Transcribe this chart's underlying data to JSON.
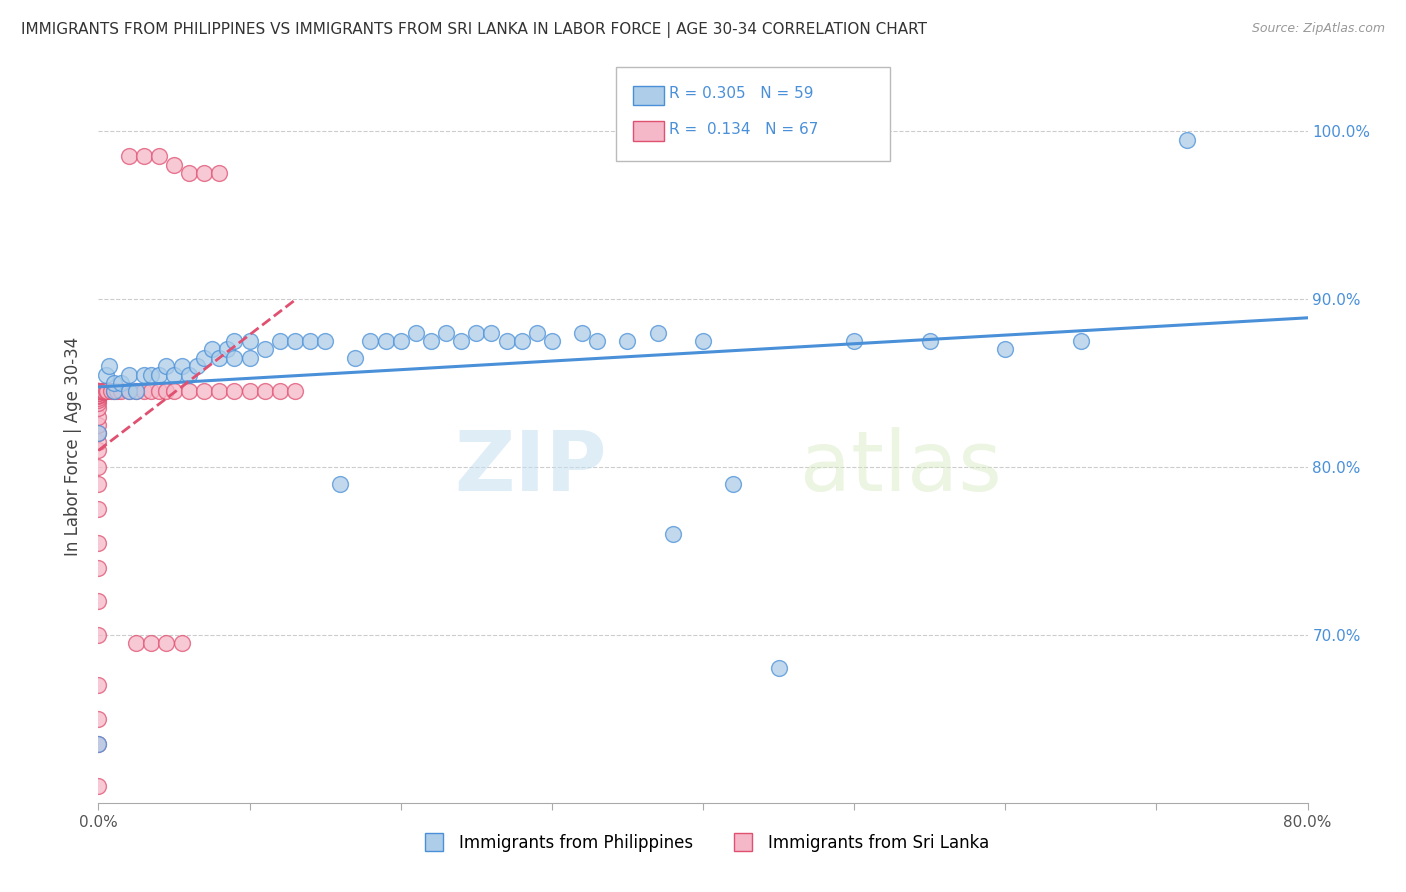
{
  "title": "IMMIGRANTS FROM PHILIPPINES VS IMMIGRANTS FROM SRI LANKA IN LABOR FORCE | AGE 30-34 CORRELATION CHART",
  "source": "Source: ZipAtlas.com",
  "ylabel": "In Labor Force | Age 30-34",
  "xmin": 0.0,
  "xmax": 0.8,
  "ymin": 0.6,
  "ymax": 1.025,
  "yticks": [
    0.7,
    0.8,
    0.9,
    1.0
  ],
  "ytick_labels": [
    "70.0%",
    "80.0%",
    "90.0%",
    "100.0%"
  ],
  "xticks": [
    0.0,
    0.1,
    0.2,
    0.3,
    0.4,
    0.5,
    0.6,
    0.7,
    0.8
  ],
  "xtick_labels": [
    "0.0%",
    "",
    "",
    "",
    "",
    "",
    "",
    "",
    "80.0%"
  ],
  "legend_labels": [
    "Immigrants from Philippines",
    "Immigrants from Sri Lanka"
  ],
  "R_philippines": 0.305,
  "N_philippines": 59,
  "R_sri_lanka": 0.134,
  "N_sri_lanka": 67,
  "color_philippines": "#aecde8",
  "color_sri_lanka": "#f5b8c8",
  "color_trend_philippines": "#4a90d9",
  "color_trend_sri_lanka": "#e05070",
  "watermark_zip": "ZIP",
  "watermark_atlas": "atlas",
  "philippines_x": [
    0.0,
    0.0,
    0.005,
    0.007,
    0.01,
    0.01,
    0.015,
    0.02,
    0.02,
    0.025,
    0.03,
    0.035,
    0.04,
    0.045,
    0.05,
    0.055,
    0.06,
    0.065,
    0.07,
    0.075,
    0.08,
    0.085,
    0.09,
    0.09,
    0.1,
    0.1,
    0.11,
    0.12,
    0.13,
    0.14,
    0.15,
    0.16,
    0.17,
    0.18,
    0.19,
    0.2,
    0.21,
    0.22,
    0.23,
    0.24,
    0.25,
    0.26,
    0.27,
    0.28,
    0.29,
    0.3,
    0.32,
    0.33,
    0.35,
    0.37,
    0.38,
    0.4,
    0.42,
    0.45,
    0.5,
    0.55,
    0.6,
    0.65,
    0.72
  ],
  "philippines_y": [
    0.635,
    0.82,
    0.855,
    0.86,
    0.845,
    0.85,
    0.85,
    0.845,
    0.855,
    0.845,
    0.855,
    0.855,
    0.855,
    0.86,
    0.855,
    0.86,
    0.855,
    0.86,
    0.865,
    0.87,
    0.865,
    0.87,
    0.865,
    0.875,
    0.865,
    0.875,
    0.87,
    0.875,
    0.875,
    0.875,
    0.875,
    0.79,
    0.865,
    0.875,
    0.875,
    0.875,
    0.88,
    0.875,
    0.88,
    0.875,
    0.88,
    0.88,
    0.875,
    0.875,
    0.88,
    0.875,
    0.88,
    0.875,
    0.875,
    0.88,
    0.76,
    0.875,
    0.79,
    0.68,
    0.875,
    0.875,
    0.87,
    0.875,
    0.995
  ],
  "srilanka_x": [
    0.0,
    0.0,
    0.0,
    0.0,
    0.0,
    0.0,
    0.0,
    0.0,
    0.0,
    0.0,
    0.0,
    0.0,
    0.0,
    0.0,
    0.0,
    0.0,
    0.0,
    0.0,
    0.0,
    0.0,
    0.0,
    0.0,
    0.0,
    0.0,
    0.0,
    0.0,
    0.0,
    0.0,
    0.0,
    0.0,
    0.0,
    0.0,
    0.002,
    0.003,
    0.004,
    0.005,
    0.006,
    0.008,
    0.01,
    0.012,
    0.015,
    0.02,
    0.025,
    0.03,
    0.035,
    0.04,
    0.045,
    0.05,
    0.06,
    0.07,
    0.08,
    0.09,
    0.1,
    0.11,
    0.12,
    0.13,
    0.02,
    0.03,
    0.04,
    0.05,
    0.06,
    0.07,
    0.08,
    0.025,
    0.035,
    0.045,
    0.055
  ],
  "srilanka_y": [
    0.61,
    0.635,
    0.65,
    0.67,
    0.7,
    0.72,
    0.74,
    0.755,
    0.775,
    0.79,
    0.8,
    0.81,
    0.815,
    0.82,
    0.825,
    0.83,
    0.835,
    0.838,
    0.84,
    0.841,
    0.842,
    0.843,
    0.843,
    0.844,
    0.844,
    0.844,
    0.845,
    0.845,
    0.845,
    0.845,
    0.845,
    0.845,
    0.845,
    0.845,
    0.845,
    0.845,
    0.845,
    0.845,
    0.845,
    0.845,
    0.845,
    0.845,
    0.845,
    0.845,
    0.845,
    0.845,
    0.845,
    0.845,
    0.845,
    0.845,
    0.845,
    0.845,
    0.845,
    0.845,
    0.845,
    0.845,
    0.985,
    0.985,
    0.985,
    0.98,
    0.975,
    0.975,
    0.975,
    0.695,
    0.695,
    0.695,
    0.695
  ]
}
